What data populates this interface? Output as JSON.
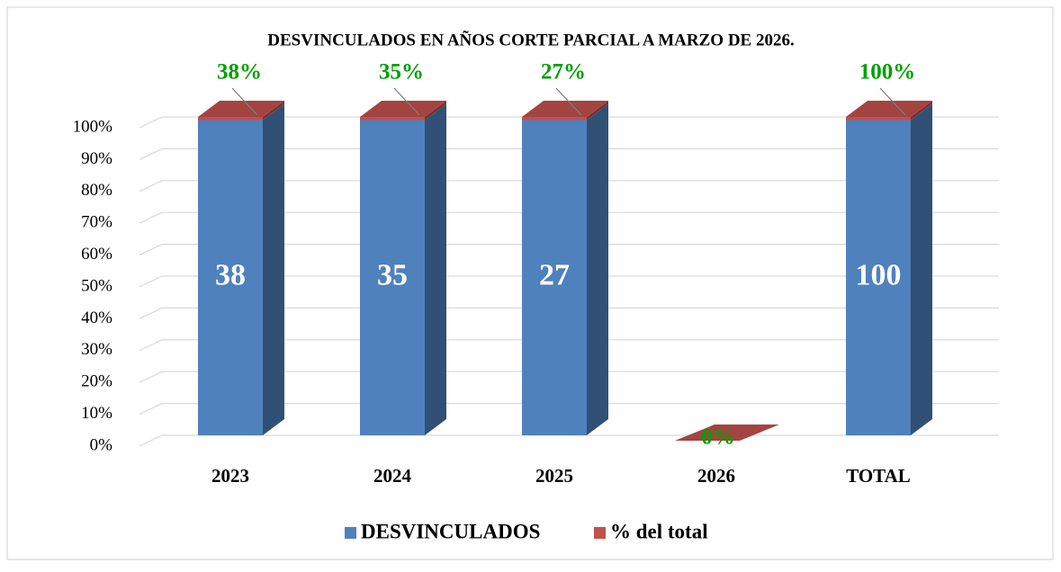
{
  "chart_data": {
    "type": "bar",
    "stacking": "percent",
    "title": "DESVINCULADOS EN AÑOS CORTE PARCIAL A MARZO DE 2026.",
    "categories": [
      "2023",
      "2024",
      "2025",
      "2026",
      "TOTAL"
    ],
    "series": [
      {
        "name": "DESVINCULADOS",
        "color": "#4f81bd",
        "values": [
          38,
          35,
          27,
          0,
          100
        ]
      },
      {
        "name": "% del total",
        "color": "#c0504d",
        "values": [
          0.38,
          0.35,
          0.27,
          0,
          1
        ],
        "value_labels": [
          "38%",
          "35%",
          "27%",
          "0%",
          "100%"
        ]
      }
    ],
    "ylim": [
      0,
      100
    ],
    "yticks": [
      {
        "value": 0,
        "label": "0%"
      },
      {
        "value": 10,
        "label": "10%"
      },
      {
        "value": 20,
        "label": "20%"
      },
      {
        "value": 30,
        "label": "30%"
      },
      {
        "value": 40,
        "label": "40%"
      },
      {
        "value": 50,
        "label": "50%"
      },
      {
        "value": 60,
        "label": "60%"
      },
      {
        "value": 70,
        "label": "70%"
      },
      {
        "value": 80,
        "label": "80%"
      },
      {
        "value": 90,
        "label": "90%"
      },
      {
        "value": 100,
        "label": "100%"
      }
    ],
    "grid": true,
    "legend": "bottom"
  }
}
